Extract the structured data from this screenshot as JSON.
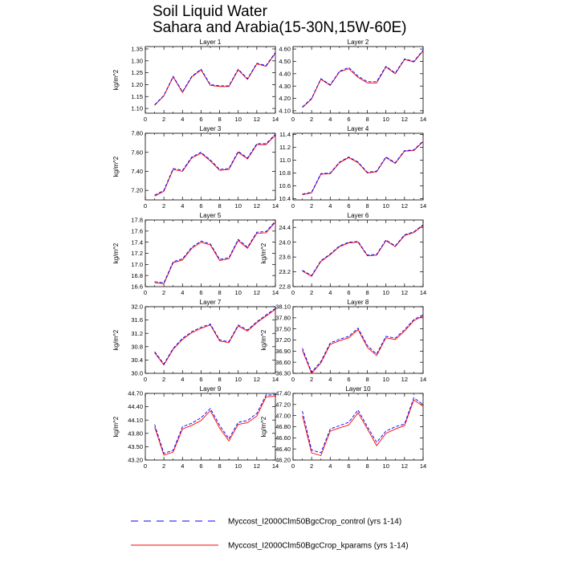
{
  "page": {
    "title_line1": "Soil Liquid Water",
    "title_line2": "Sahara and Arabia(15-30N,15W-60E)"
  },
  "legend": {
    "entries": [
      {
        "label": "Myccost_I2000Clm50BgcCrop_control (yrs 1-14)",
        "color": "#0000ff",
        "dashed": true
      },
      {
        "label": "Myccost_I2000Clm50BgcCrop_kparams (yrs 1-14)",
        "color": "#ff0000",
        "dashed": false
      }
    ]
  },
  "chart_data": [
    {
      "type": "line",
      "title": "Layer 1",
      "xlabel": "",
      "ylabel": "kg/m^2",
      "xlim": [
        0,
        14
      ],
      "ylim": [
        1.08,
        1.36
      ],
      "xticks": [
        0,
        2,
        4,
        6,
        8,
        10,
        12,
        14
      ],
      "yticks": [
        1.1,
        1.15,
        1.2,
        1.25,
        1.3,
        1.35
      ],
      "yticklabels": [
        "1.10",
        "1.15",
        "1.20",
        "1.25",
        "1.30",
        "1.35"
      ],
      "x": [
        1,
        2,
        3,
        4,
        5,
        6,
        7,
        8,
        9,
        10,
        11,
        12,
        13,
        14
      ],
      "series": [
        {
          "name": "Myccost_I2000Clm50BgcCrop_control (yrs 1-14)",
          "values": [
            1.115,
            1.155,
            1.235,
            1.17,
            1.235,
            1.265,
            1.2,
            1.195,
            1.195,
            1.265,
            1.225,
            1.29,
            1.28,
            1.335
          ]
        },
        {
          "name": "Myccost_I2000Clm50BgcCrop_kparams (yrs 1-14)",
          "values": [
            1.113,
            1.153,
            1.232,
            1.167,
            1.232,
            1.262,
            1.197,
            1.192,
            1.192,
            1.262,
            1.222,
            1.287,
            1.277,
            1.332
          ]
        }
      ]
    },
    {
      "type": "line",
      "title": "Layer 2",
      "xlabel": "",
      "ylabel": "",
      "xlim": [
        0,
        14
      ],
      "ylim": [
        4.08,
        4.62
      ],
      "xticks": [
        0,
        2,
        4,
        6,
        8,
        10,
        12,
        14
      ],
      "yticks": [
        4.1,
        4.2,
        4.3,
        4.4,
        4.5,
        4.6
      ],
      "yticklabels": [
        "4.10",
        "4.20",
        "4.30",
        "4.40",
        "4.50",
        "4.60"
      ],
      "x": [
        1,
        2,
        3,
        4,
        5,
        6,
        7,
        8,
        9,
        10,
        11,
        12,
        13,
        14
      ],
      "series": [
        {
          "name": "Myccost_I2000Clm50BgcCrop_control (yrs 1-14)",
          "values": [
            4.13,
            4.2,
            4.36,
            4.31,
            4.42,
            4.45,
            4.38,
            4.335,
            4.335,
            4.46,
            4.405,
            4.52,
            4.5,
            4.59
          ]
        },
        {
          "name": "Myccost_I2000Clm50BgcCrop_kparams (yrs 1-14)",
          "values": [
            4.125,
            4.195,
            4.355,
            4.305,
            4.415,
            4.44,
            4.37,
            4.325,
            4.325,
            4.455,
            4.4,
            4.515,
            4.495,
            4.585
          ]
        }
      ]
    },
    {
      "type": "line",
      "title": "Layer 3",
      "xlabel": "",
      "ylabel": "kg/m^2",
      "xlim": [
        0,
        14
      ],
      "ylim": [
        7.1,
        7.8
      ],
      "xticks": [
        0,
        2,
        4,
        6,
        8,
        10,
        12,
        14
      ],
      "yticks": [
        7.2,
        7.4,
        7.6,
        7.8
      ],
      "yticklabels": [
        "7.20",
        "7.40",
        "7.60",
        "7.80"
      ],
      "x": [
        1,
        2,
        3,
        4,
        5,
        6,
        7,
        8,
        9,
        10,
        11,
        12,
        13,
        14
      ],
      "series": [
        {
          "name": "Myccost_I2000Clm50BgcCrop_control (yrs 1-14)",
          "values": [
            7.15,
            7.2,
            7.43,
            7.41,
            7.55,
            7.6,
            7.52,
            7.42,
            7.43,
            7.61,
            7.54,
            7.69,
            7.69,
            7.79
          ]
        },
        {
          "name": "Myccost_I2000Clm50BgcCrop_kparams (yrs 1-14)",
          "values": [
            7.14,
            7.19,
            7.42,
            7.4,
            7.54,
            7.59,
            7.51,
            7.41,
            7.42,
            7.6,
            7.53,
            7.68,
            7.68,
            7.78
          ]
        }
      ]
    },
    {
      "type": "line",
      "title": "Layer 4",
      "xlabel": "",
      "ylabel": "",
      "xlim": [
        0,
        14
      ],
      "ylim": [
        10.38,
        11.42
      ],
      "xticks": [
        0,
        2,
        4,
        6,
        8,
        10,
        12,
        14
      ],
      "yticks": [
        10.4,
        10.6,
        10.8,
        11.0,
        11.2,
        11.4
      ],
      "yticklabels": [
        "10.4",
        "10.6",
        "10.8",
        "11.0",
        "11.2",
        "11.4"
      ],
      "x": [
        1,
        2,
        3,
        4,
        5,
        6,
        7,
        8,
        9,
        10,
        11,
        12,
        13,
        14
      ],
      "series": [
        {
          "name": "Myccost_I2000Clm50BgcCrop_control (yrs 1-14)",
          "values": [
            10.47,
            10.5,
            10.79,
            10.8,
            10.97,
            11.05,
            10.97,
            10.81,
            10.83,
            11.05,
            10.96,
            11.15,
            11.16,
            11.3
          ]
        },
        {
          "name": "Myccost_I2000Clm50BgcCrop_kparams (yrs 1-14)",
          "values": [
            10.46,
            10.49,
            10.78,
            10.79,
            10.96,
            11.04,
            10.96,
            10.8,
            10.82,
            11.04,
            10.95,
            11.14,
            11.15,
            11.29
          ]
        }
      ]
    },
    {
      "type": "line",
      "title": "Layer 5",
      "xlabel": "",
      "ylabel": "kg/m^2",
      "xlim": [
        0,
        14
      ],
      "ylim": [
        16.6,
        17.8
      ],
      "xticks": [
        0,
        2,
        4,
        6,
        8,
        10,
        12,
        14
      ],
      "yticks": [
        16.6,
        16.8,
        17.0,
        17.2,
        17.4,
        17.6,
        17.8
      ],
      "yticklabels": [
        "16.6",
        "16.8",
        "17.0",
        "17.2",
        "17.4",
        "17.6",
        "17.8"
      ],
      "x": [
        1,
        2,
        3,
        4,
        5,
        6,
        7,
        8,
        9,
        10,
        11,
        12,
        13,
        14
      ],
      "series": [
        {
          "name": "Myccost_I2000Clm50BgcCrop_control (yrs 1-14)",
          "values": [
            16.69,
            16.67,
            17.05,
            17.1,
            17.31,
            17.42,
            17.37,
            17.09,
            17.12,
            17.45,
            17.31,
            17.58,
            17.59,
            17.78
          ]
        },
        {
          "name": "Myccost_I2000Clm50BgcCrop_kparams (yrs 1-14)",
          "values": [
            16.67,
            16.65,
            17.03,
            17.08,
            17.29,
            17.4,
            17.35,
            17.07,
            17.1,
            17.43,
            17.29,
            17.56,
            17.57,
            17.76
          ]
        }
      ]
    },
    {
      "type": "line",
      "title": "Layer 6",
      "xlabel": "",
      "ylabel": "kg/m^2",
      "xlim": [
        0,
        14
      ],
      "ylim": [
        22.8,
        24.6
      ],
      "xticks": [
        0,
        2,
        4,
        6,
        8,
        10,
        12,
        14
      ],
      "yticks": [
        22.8,
        23.2,
        23.6,
        24.0,
        24.4
      ],
      "yticklabels": [
        "22.8",
        "23.2",
        "23.6",
        "24.0",
        "24.4"
      ],
      "x": [
        1,
        2,
        3,
        4,
        5,
        6,
        7,
        8,
        9,
        10,
        11,
        12,
        13,
        14
      ],
      "series": [
        {
          "name": "Myccost_I2000Clm50BgcCrop_control (yrs 1-14)",
          "values": [
            23.24,
            23.1,
            23.5,
            23.68,
            23.9,
            24.0,
            24.02,
            23.65,
            23.67,
            24.06,
            23.9,
            24.2,
            24.28,
            24.47
          ]
        },
        {
          "name": "Myccost_I2000Clm50BgcCrop_kparams (yrs 1-14)",
          "values": [
            23.22,
            23.08,
            23.48,
            23.66,
            23.88,
            23.98,
            24.0,
            23.63,
            23.65,
            24.04,
            23.88,
            24.18,
            24.26,
            24.45
          ]
        }
      ]
    },
    {
      "type": "line",
      "title": "Layer 7",
      "xlabel": "",
      "ylabel": "kg/m^2",
      "xlim": [
        0,
        14
      ],
      "ylim": [
        30.0,
        32.0
      ],
      "xticks": [
        0,
        2,
        4,
        6,
        8,
        10,
        12,
        14
      ],
      "yticks": [
        30.0,
        30.4,
        30.8,
        31.2,
        31.6,
        32.0
      ],
      "yticklabels": [
        "30.0",
        "30.4",
        "30.8",
        "31.2",
        "31.6",
        "32.0"
      ],
      "x": [
        1,
        2,
        3,
        4,
        5,
        6,
        7,
        8,
        9,
        10,
        11,
        12,
        13,
        14
      ],
      "series": [
        {
          "name": "Myccost_I2000Clm50BgcCrop_control (yrs 1-14)",
          "values": [
            30.65,
            30.28,
            30.75,
            31.05,
            31.25,
            31.38,
            31.48,
            31.0,
            30.95,
            31.45,
            31.3,
            31.55,
            31.75,
            31.95
          ]
        },
        {
          "name": "Myccost_I2000Clm50BgcCrop_kparams (yrs 1-14)",
          "values": [
            30.62,
            30.25,
            30.72,
            31.02,
            31.22,
            31.35,
            31.45,
            30.97,
            30.92,
            31.42,
            31.27,
            31.52,
            31.72,
            31.92
          ]
        }
      ]
    },
    {
      "type": "line",
      "title": "Layer 8",
      "xlabel": "",
      "ylabel": "kg/m^2",
      "xlim": [
        0,
        14
      ],
      "ylim": [
        36.3,
        38.1
      ],
      "xticks": [
        0,
        2,
        4,
        6,
        8,
        10,
        12,
        14
      ],
      "yticks": [
        36.3,
        36.6,
        36.9,
        37.2,
        37.5,
        37.8,
        38.1
      ],
      "yticklabels": [
        "36.30",
        "36.60",
        "36.90",
        "37.20",
        "37.50",
        "37.80",
        "38.10"
      ],
      "x": [
        1,
        2,
        3,
        4,
        5,
        6,
        7,
        8,
        9,
        10,
        11,
        12,
        13,
        14
      ],
      "series": [
        {
          "name": "Myccost_I2000Clm50BgcCrop_control (yrs 1-14)",
          "values": [
            36.98,
            36.33,
            36.62,
            37.12,
            37.22,
            37.3,
            37.52,
            37.05,
            36.82,
            37.3,
            37.25,
            37.48,
            37.75,
            37.88
          ]
        },
        {
          "name": "Myccost_I2000Clm50BgcCrop_kparams (yrs 1-14)",
          "values": [
            36.92,
            36.3,
            36.58,
            37.08,
            37.18,
            37.26,
            37.48,
            37.0,
            36.78,
            37.26,
            37.21,
            37.44,
            37.72,
            37.85
          ]
        }
      ]
    },
    {
      "type": "line",
      "title": "Layer 9",
      "xlabel": "",
      "ylabel": "kg/m^2",
      "xlim": [
        0,
        14
      ],
      "ylim": [
        43.2,
        44.7
      ],
      "xticks": [
        0,
        2,
        4,
        6,
        8,
        10,
        12,
        14
      ],
      "yticks": [
        43.2,
        43.5,
        43.8,
        44.1,
        44.4,
        44.7
      ],
      "yticklabels": [
        "43.20",
        "43.50",
        "43.80",
        "44.10",
        "44.40",
        "44.70"
      ],
      "x": [
        1,
        2,
        3,
        4,
        5,
        6,
        7,
        8,
        9,
        10,
        11,
        12,
        13,
        14
      ],
      "series": [
        {
          "name": "Myccost_I2000Clm50BgcCrop_control (yrs 1-14)",
          "values": [
            44.0,
            43.35,
            43.42,
            43.95,
            44.03,
            44.15,
            44.36,
            43.98,
            43.68,
            44.05,
            44.09,
            44.25,
            44.66,
            44.67
          ]
        },
        {
          "name": "Myccost_I2000Clm50BgcCrop_kparams (yrs 1-14)",
          "values": [
            43.94,
            43.31,
            43.38,
            43.9,
            43.98,
            44.09,
            44.31,
            43.92,
            43.63,
            44.0,
            44.04,
            44.19,
            44.62,
            44.64
          ]
        }
      ]
    },
    {
      "type": "line",
      "title": "Layer 10",
      "xlabel": "",
      "ylabel": "kg/m^2",
      "xlim": [
        0,
        14
      ],
      "ylim": [
        46.2,
        47.4
      ],
      "xticks": [
        0,
        2,
        4,
        6,
        8,
        10,
        12,
        14
      ],
      "yticks": [
        46.2,
        46.4,
        46.6,
        46.8,
        47.0,
        47.2,
        47.4
      ],
      "yticklabels": [
        "46.20",
        "46.40",
        "46.60",
        "46.80",
        "47.00",
        "47.20",
        "47.40"
      ],
      "x": [
        1,
        2,
        3,
        4,
        5,
        6,
        7,
        8,
        9,
        10,
        11,
        12,
        13,
        14
      ],
      "series": [
        {
          "name": "Myccost_I2000Clm50BgcCrop_control (yrs 1-14)",
          "values": [
            47.08,
            46.38,
            46.33,
            46.76,
            46.82,
            46.88,
            47.1,
            46.8,
            46.52,
            46.72,
            46.8,
            46.85,
            47.32,
            47.2
          ]
        },
        {
          "name": "Myccost_I2000Clm50BgcCrop_kparams (yrs 1-14)",
          "values": [
            47.0,
            46.33,
            46.28,
            46.72,
            46.78,
            46.83,
            47.05,
            46.76,
            46.46,
            46.68,
            46.76,
            46.82,
            47.28,
            47.17
          ]
        }
      ]
    }
  ]
}
